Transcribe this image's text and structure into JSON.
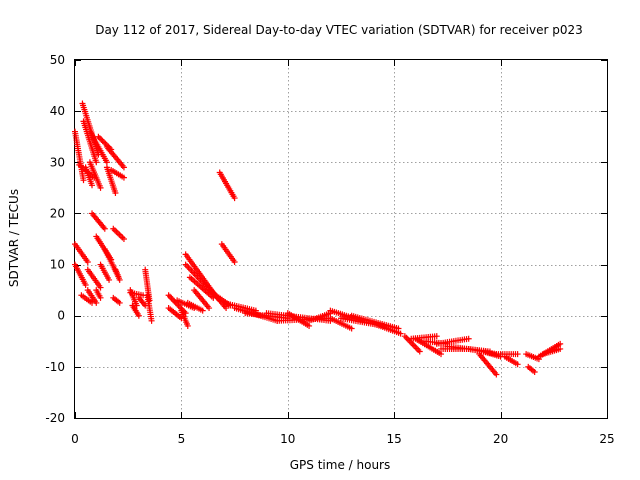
{
  "chart_data": {
    "type": "scatter",
    "title": "Day 112 of 2017, Sidereal Day-to-day VTEC variation (SDTVAR) for receiver p023",
    "xlabel": "GPS time / hours",
    "ylabel": "SDTVAR / TECUs",
    "xlim": [
      0,
      25
    ],
    "ylim": [
      -20,
      50
    ],
    "xticks": [
      "0",
      "5",
      "10",
      "15",
      "20",
      "25"
    ],
    "yticks": [
      "-20",
      "-10",
      "0",
      "10",
      "20",
      "30",
      "40",
      "50"
    ],
    "grid": true,
    "marker": "+",
    "color": "#ff0000",
    "segments": [
      {
        "x0": 0.35,
        "y0": 41.5,
        "x1": 1.1,
        "y1": 31.5
      },
      {
        "x0": 0.0,
        "y0": 36.0,
        "x1": 0.4,
        "y1": 26.5
      },
      {
        "x0": 0.2,
        "y0": 29.5,
        "x1": 0.9,
        "y1": 27.0
      },
      {
        "x0": 0.5,
        "y0": 29.0,
        "x1": 0.8,
        "y1": 25.5
      },
      {
        "x0": 0.4,
        "y0": 38.0,
        "x1": 1.0,
        "y1": 30.0
      },
      {
        "x0": 0.7,
        "y0": 36.0,
        "x1": 1.5,
        "y1": 30.0
      },
      {
        "x0": 1.1,
        "y0": 35.0,
        "x1": 1.7,
        "y1": 32.5
      },
      {
        "x0": 0.7,
        "y0": 30.0,
        "x1": 1.2,
        "y1": 25.0
      },
      {
        "x0": 1.5,
        "y0": 33.0,
        "x1": 2.3,
        "y1": 29.0
      },
      {
        "x0": 1.5,
        "y0": 29.0,
        "x1": 1.9,
        "y1": 24.0
      },
      {
        "x0": 1.7,
        "y0": 28.5,
        "x1": 2.3,
        "y1": 27.0
      },
      {
        "x0": 0.0,
        "y0": 14.0,
        "x1": 0.6,
        "y1": 10.5
      },
      {
        "x0": 0.0,
        "y0": 10.0,
        "x1": 0.5,
        "y1": 6.0
      },
      {
        "x0": 0.6,
        "y0": 9.0,
        "x1": 1.2,
        "y1": 5.5
      },
      {
        "x0": 0.3,
        "y0": 4.0,
        "x1": 0.8,
        "y1": 2.5
      },
      {
        "x0": 0.8,
        "y0": 20.0,
        "x1": 1.4,
        "y1": 17.0
      },
      {
        "x0": 1.0,
        "y0": 15.5,
        "x1": 1.7,
        "y1": 11.0
      },
      {
        "x0": 1.4,
        "y0": 13.0,
        "x1": 2.0,
        "y1": 8.0
      },
      {
        "x0": 1.8,
        "y0": 17.0,
        "x1": 2.3,
        "y1": 15.0
      },
      {
        "x0": 1.2,
        "y0": 10.0,
        "x1": 1.6,
        "y1": 7.0
      },
      {
        "x0": 1.9,
        "y0": 9.0,
        "x1": 2.1,
        "y1": 7.0
      },
      {
        "x0": 0.6,
        "y0": 5.0,
        "x1": 1.0,
        "y1": 2.5
      },
      {
        "x0": 1.0,
        "y0": 5.0,
        "x1": 1.2,
        "y1": 3.5
      },
      {
        "x0": 1.8,
        "y0": 3.5,
        "x1": 2.1,
        "y1": 2.5
      },
      {
        "x0": 2.6,
        "y0": 5.0,
        "x1": 2.9,
        "y1": 2.0
      },
      {
        "x0": 2.7,
        "y0": 2.0,
        "x1": 3.0,
        "y1": 0.0
      },
      {
        "x0": 3.0,
        "y0": 3.5,
        "x1": 3.3,
        "y1": 2.0
      },
      {
        "x0": 3.3,
        "y0": 9.0,
        "x1": 3.5,
        "y1": 3.0
      },
      {
        "x0": 3.4,
        "y0": 4.0,
        "x1": 3.6,
        "y1": -1.0
      },
      {
        "x0": 2.6,
        "y0": 4.5,
        "x1": 3.2,
        "y1": 4.0
      },
      {
        "x0": 4.4,
        "y0": 4.0,
        "x1": 5.2,
        "y1": 0.5
      },
      {
        "x0": 4.4,
        "y0": 1.5,
        "x1": 5.0,
        "y1": -0.5
      },
      {
        "x0": 5.0,
        "y0": 1.0,
        "x1": 5.3,
        "y1": -2.0
      },
      {
        "x0": 4.8,
        "y0": 3.0,
        "x1": 5.6,
        "y1": 1.5
      },
      {
        "x0": 5.2,
        "y0": 12.0,
        "x1": 6.5,
        "y1": 4.5
      },
      {
        "x0": 5.2,
        "y0": 10.0,
        "x1": 6.8,
        "y1": 3.0
      },
      {
        "x0": 5.4,
        "y0": 7.5,
        "x1": 6.5,
        "y1": 3.5
      },
      {
        "x0": 5.6,
        "y0": 5.0,
        "x1": 6.3,
        "y1": 1.5
      },
      {
        "x0": 6.4,
        "y0": 5.0,
        "x1": 7.1,
        "y1": 1.5
      },
      {
        "x0": 6.6,
        "y0": 4.0,
        "x1": 7.3,
        "y1": 2.0
      },
      {
        "x0": 5.3,
        "y0": 2.5,
        "x1": 6.0,
        "y1": 1.0
      },
      {
        "x0": 6.8,
        "y0": 28.0,
        "x1": 7.5,
        "y1": 23.0
      },
      {
        "x0": 6.9,
        "y0": 14.0,
        "x1": 7.5,
        "y1": 10.5
      },
      {
        "x0": 7.0,
        "y0": 2.5,
        "x1": 8.5,
        "y1": 1.0
      },
      {
        "x0": 7.5,
        "y0": 1.5,
        "x1": 9.5,
        "y1": -1.0
      },
      {
        "x0": 8.0,
        "y0": 0.5,
        "x1": 10.0,
        "y1": -0.5
      },
      {
        "x0": 9.0,
        "y0": 0.5,
        "x1": 12.0,
        "y1": -1.0
      },
      {
        "x0": 9.5,
        "y0": -1.0,
        "x1": 12.0,
        "y1": -0.5
      },
      {
        "x0": 10.0,
        "y0": 0.5,
        "x1": 11.0,
        "y1": -2.0
      },
      {
        "x0": 11.0,
        "y0": -1.0,
        "x1": 12.0,
        "y1": 0.5
      },
      {
        "x0": 12.0,
        "y0": 1.0,
        "x1": 13.5,
        "y1": -1.0
      },
      {
        "x0": 12.5,
        "y0": -0.5,
        "x1": 14.5,
        "y1": -2.0
      },
      {
        "x0": 13.0,
        "y0": 0.0,
        "x1": 15.2,
        "y1": -2.5
      },
      {
        "x0": 12.0,
        "y0": -0.5,
        "x1": 13.0,
        "y1": -2.5
      },
      {
        "x0": 14.0,
        "y0": -1.5,
        "x1": 15.3,
        "y1": -3.5
      },
      {
        "x0": 15.5,
        "y0": -4.0,
        "x1": 16.2,
        "y1": -7.0
      },
      {
        "x0": 15.8,
        "y0": -4.5,
        "x1": 17.0,
        "y1": -4.0
      },
      {
        "x0": 16.0,
        "y0": -4.5,
        "x1": 17.2,
        "y1": -7.5
      },
      {
        "x0": 16.5,
        "y0": -5.0,
        "x1": 17.5,
        "y1": -5.5
      },
      {
        "x0": 17.0,
        "y0": -5.5,
        "x1": 18.5,
        "y1": -4.5
      },
      {
        "x0": 17.2,
        "y0": -6.5,
        "x1": 18.5,
        "y1": -6.5
      },
      {
        "x0": 17.5,
        "y0": -6.0,
        "x1": 19.5,
        "y1": -7.0
      },
      {
        "x0": 18.5,
        "y0": -6.5,
        "x1": 19.8,
        "y1": -7.5
      },
      {
        "x0": 19.0,
        "y0": -7.5,
        "x1": 19.8,
        "y1": -11.5
      },
      {
        "x0": 19.2,
        "y0": -7.0,
        "x1": 20.0,
        "y1": -8.0
      },
      {
        "x0": 19.8,
        "y0": -7.5,
        "x1": 20.8,
        "y1": -7.5
      },
      {
        "x0": 20.2,
        "y0": -8.0,
        "x1": 20.8,
        "y1": -9.5
      },
      {
        "x0": 21.2,
        "y0": -7.5,
        "x1": 21.8,
        "y1": -8.5
      },
      {
        "x0": 21.3,
        "y0": -10.0,
        "x1": 21.6,
        "y1": -11.0
      },
      {
        "x0": 21.8,
        "y0": -8.0,
        "x1": 22.8,
        "y1": -5.5
      },
      {
        "x0": 22.0,
        "y0": -7.5,
        "x1": 22.8,
        "y1": -6.5
      }
    ]
  }
}
